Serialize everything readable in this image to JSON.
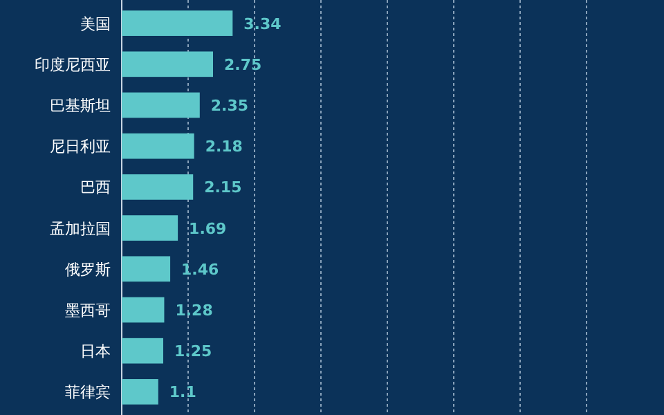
{
  "chart_data": {
    "type": "bar",
    "orientation": "horizontal",
    "categories": [
      "美国",
      "印度尼西亚",
      "巴基斯坦",
      "尼日利亚",
      "巴西",
      "孟加拉国",
      "俄罗斯",
      "墨西哥",
      "日本",
      "菲律宾"
    ],
    "values": [
      3.34,
      2.75,
      2.35,
      2.18,
      2.15,
      1.69,
      1.46,
      1.28,
      1.25,
      1.1
    ],
    "color": "#5ec8ca",
    "xlim": [
      0,
      14
    ],
    "xticks": [
      {
        "value": 2,
        "label": null
      },
      {
        "value": 4,
        "label": null
      },
      {
        "value": 6,
        "label": null
      },
      {
        "value": 8,
        "label": null
      },
      {
        "value": 10,
        "label": null
      },
      {
        "value": 12,
        "label": null
      },
      {
        "value": 14,
        "label": null
      }
    ],
    "grid": "x",
    "tick_labels": "y",
    "data_labels": true
  }
}
